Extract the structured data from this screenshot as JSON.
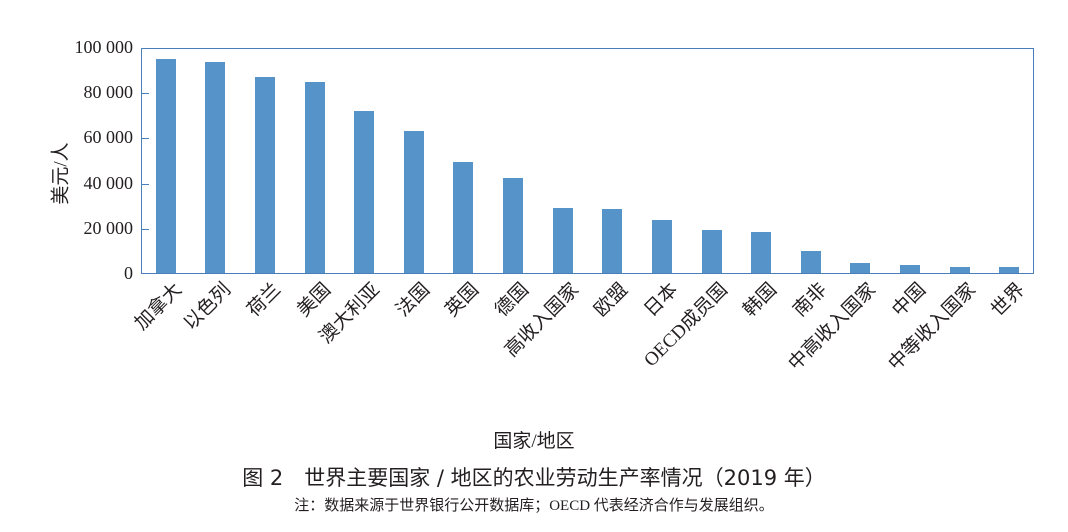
{
  "chart_data": {
    "type": "bar",
    "title": "图 2　世界主要国家 / 地区的农业劳动生产率情况（2019 年）",
    "note": "注：数据来源于世界银行公开数据库；OECD 代表经济合作与发展组织。",
    "xlabel": "国家/地区",
    "ylabel": "美元/人",
    "ylim": [
      0,
      100000
    ],
    "yticks": [
      0,
      20000,
      40000,
      60000,
      80000,
      100000
    ],
    "ytick_labels": [
      "0",
      "20 000",
      "40 000",
      "60 000",
      "80 000",
      "100 000"
    ],
    "grid": false,
    "legend": null,
    "bar_color": "#5593c8",
    "axis_color": "#4a7ebb",
    "categories": [
      "加拿大",
      "以色列",
      "荷兰",
      "美国",
      "澳大利亚",
      "法国",
      "英国",
      "德国",
      "高收入国家",
      "欧盟",
      "日本",
      "OECD成员国",
      "韩国",
      "南非",
      "中高收入国家",
      "中国",
      "中等收入国家",
      "世界"
    ],
    "values": [
      95200,
      94000,
      87300,
      85000,
      72200,
      63700,
      50000,
      42500,
      29600,
      28800,
      24300,
      19500,
      18600,
      10600,
      5300,
      4000,
      3500,
      3500
    ]
  }
}
